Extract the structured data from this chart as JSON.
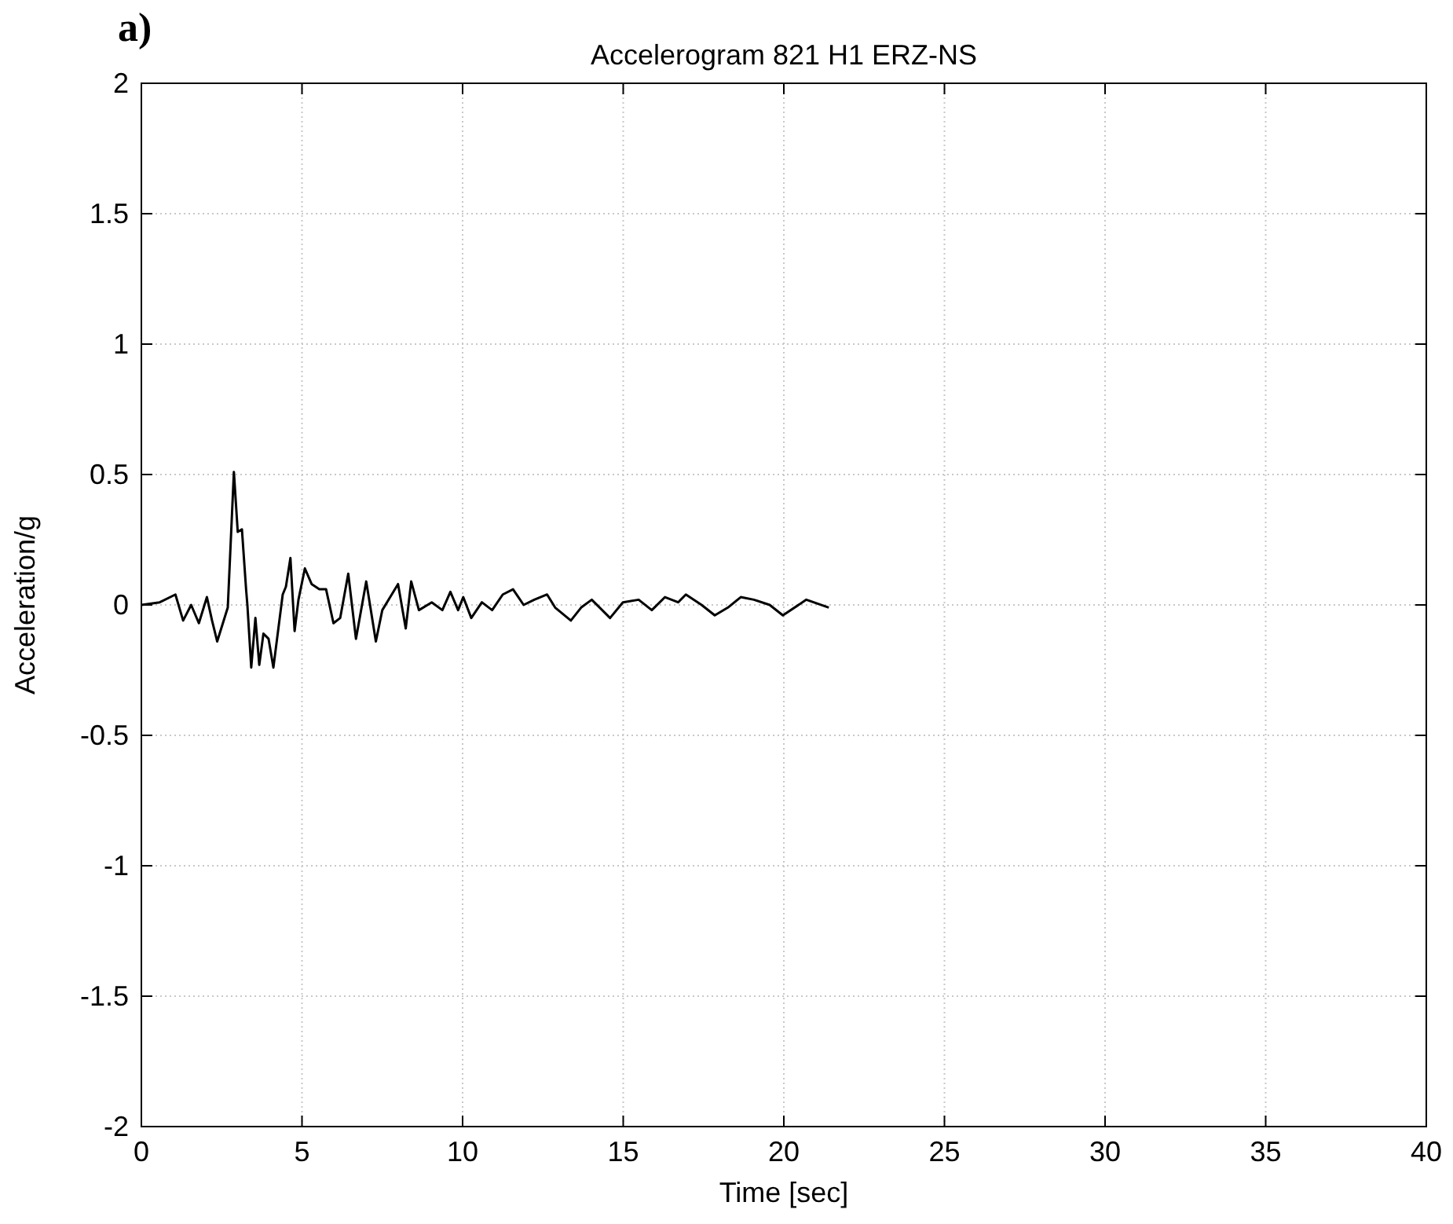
{
  "chart_data": {
    "type": "line",
    "title": "Accelerogram 821 H1 ERZ-NS",
    "xlabel": "Time [sec]",
    "ylabel": "Acceleration/g",
    "annotations": [
      "a)"
    ],
    "x": [
      0,
      0.57,
      1.06,
      1.3,
      1.55,
      1.79,
      2.04,
      2.2,
      2.36,
      2.69,
      2.88,
      3.0,
      3.13,
      3.26,
      3.3,
      3.42,
      3.55,
      3.67,
      3.8,
      3.96,
      4.11,
      4.4,
      4.5,
      4.64,
      4.77,
      4.89,
      5.09,
      5.3,
      5.54,
      5.75,
      5.98,
      6.19,
      6.44,
      6.68,
      7.0,
      7.3,
      7.5,
      7.99,
      8.23,
      8.4,
      8.64,
      9.04,
      9.37,
      9.62,
      9.86,
      10.02,
      10.27,
      10.6,
      10.92,
      11.25,
      11.57,
      11.9,
      12.23,
      12.63,
      12.88,
      13.37,
      13.69,
      14.02,
      14.59,
      14.99,
      15.48,
      15.89,
      16.3,
      16.71,
      16.95,
      17.44,
      17.85,
      18.26,
      18.66,
      19.07,
      19.56,
      19.97,
      20.7,
      21.4
    ],
    "series": [
      {
        "color": "#000000",
        "values": [
          0,
          0.01,
          0.04,
          -0.06,
          0,
          -0.07,
          0.03,
          -0.06,
          -0.14,
          -0.01,
          0.51,
          0.28,
          0.29,
          0.06,
          0,
          -0.24,
          -0.05,
          -0.23,
          -0.11,
          -0.13,
          -0.24,
          0.04,
          0.07,
          0.18,
          -0.1,
          0.02,
          0.14,
          0.08,
          0.06,
          0.06,
          -0.07,
          -0.05,
          0.12,
          -0.13,
          0.09,
          -0.14,
          -0.02,
          0.08,
          -0.09,
          0.09,
          -0.02,
          0.01,
          -0.02,
          0.05,
          -0.02,
          0.03,
          -0.05,
          0.01,
          -0.02,
          0.04,
          0.06,
          0,
          0.02,
          0.04,
          -0.01,
          -0.06,
          -0.01,
          0.02,
          -0.05,
          0.01,
          0.02,
          -0.02,
          0.03,
          0.01,
          0.04,
          0,
          -0.04,
          -0.01,
          0.03,
          0.02,
          0,
          -0.04,
          0.02,
          -0.01
        ]
      }
    ],
    "xlim": [
      0,
      40
    ],
    "xticks": [
      0,
      5,
      10,
      15,
      20,
      25,
      30,
      35,
      40
    ],
    "ylim": [
      -2,
      2
    ],
    "yticks": [
      -2,
      -1.5,
      -1,
      -0.5,
      0,
      0.5,
      1,
      1.5,
      2
    ],
    "grid": true,
    "line_style": "solid",
    "marker": "none"
  }
}
